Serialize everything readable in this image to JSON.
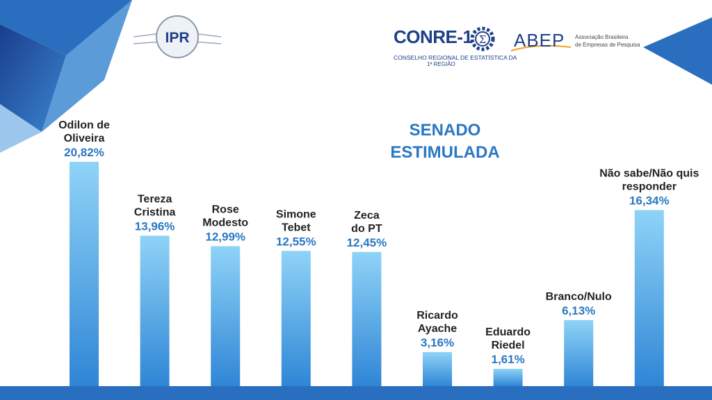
{
  "header": {
    "ipr_logo_text": "IPR",
    "conre_name": "CONRE-1",
    "conre_subtitle_line1": "CONSELHO REGIONAL DE ESTATÍSTICA DA",
    "conre_subtitle_line2": "1ª REGIÃO",
    "abep_name": "ABEP",
    "abep_subtitle_line1": "Associação Brasileira",
    "abep_subtitle_line2": "de Empresas de Pesquisa"
  },
  "colors": {
    "title": "#2a77c3",
    "value_label": "#2a77c3",
    "name_label": "#222222",
    "bar_top": "#8fd3f7",
    "bar_bottom": "#2f86d6",
    "floor": "#2a6fbf"
  },
  "chart_data": {
    "type": "bar",
    "title_line1": "SENADO",
    "title_line2": "ESTIMULADA",
    "categories": [
      [
        "Odilon de",
        "Oliveira"
      ],
      [
        "Tereza",
        "Cristina"
      ],
      [
        "Rose",
        "Modesto"
      ],
      [
        "Simone",
        "Tebet"
      ],
      [
        "Zeca",
        "do PT"
      ],
      [
        "Ricardo",
        "Ayache"
      ],
      [
        "Eduardo",
        "Riedel"
      ],
      [
        "Branco/Nulo"
      ],
      [
        "Não sabe/Não quis",
        "responder"
      ]
    ],
    "values": [
      20.82,
      13.96,
      12.99,
      12.55,
      12.45,
      3.16,
      1.61,
      6.13,
      16.34
    ],
    "value_labels": [
      "20,82%",
      "13,96%",
      "12,99%",
      "12,55%",
      "12,45%",
      "3,16%",
      "1,61%",
      "6,13%",
      "16,34%"
    ],
    "ylim": [
      0,
      25
    ],
    "grid": false,
    "legend": "none"
  }
}
